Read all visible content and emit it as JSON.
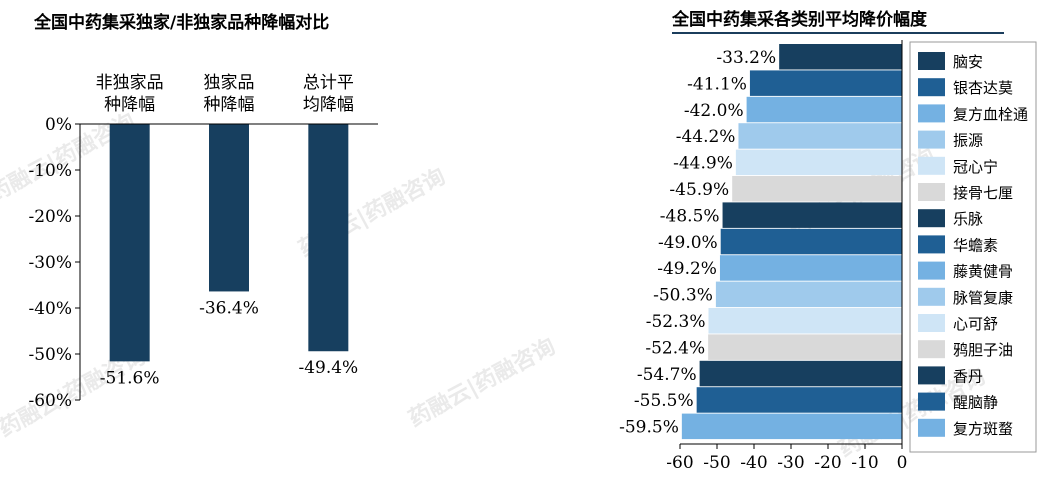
{
  "colors": {
    "navy": "#173f5f",
    "blue": "#1f5f94",
    "mid_blue": "#74b1e2",
    "light_blue": "#9fcaec",
    "pale_blue": "#cfe5f6",
    "grey": "#d9d9d9"
  },
  "watermark": "药融云|药融咨询",
  "chart_data": [
    {
      "type": "bar",
      "title": "全国中药集采独家/非独家品种降幅对比",
      "categories": [
        "非独家品种降幅",
        "独家品种降幅",
        "总计平均降幅"
      ],
      "category_lines": [
        [
          "非独家品",
          "种降幅"
        ],
        [
          "独家品",
          "种降幅"
        ],
        [
          "总计平",
          "均降幅"
        ]
      ],
      "values": [
        -51.6,
        -36.4,
        -49.4
      ],
      "value_labels": [
        "-51.6%",
        "-36.4%",
        "-49.4%"
      ],
      "ylim": [
        -60,
        0
      ],
      "yticks": [
        "0%",
        "-10%",
        "-20%",
        "-30%",
        "-40%",
        "-50%",
        "-60%"
      ],
      "bar_color": "#173f5f",
      "grid": false
    },
    {
      "type": "bar",
      "orientation": "horizontal",
      "title": "全国中药集采各类别平均降价幅度",
      "categories": [
        "脑安",
        "银杏达莫",
        "复方血栓通",
        "振源",
        "冠心宁",
        "接骨七厘",
        "乐脉",
        "华蟾素",
        "藤黄健骨",
        "脉管复康",
        "心可舒",
        "鸦胆子油",
        "香丹",
        "醒脑静",
        "复方斑蝥"
      ],
      "values": [
        -33.2,
        -41.1,
        -42.0,
        -44.2,
        -44.9,
        -45.9,
        -48.5,
        -49.0,
        -49.2,
        -50.3,
        -52.3,
        -52.4,
        -54.7,
        -55.5,
        -59.5
      ],
      "value_labels": [
        "-33.2%",
        "-41.1%",
        "-42.0%",
        "-44.2%",
        "-44.9%",
        "-45.9%",
        "-48.5%",
        "-49.0%",
        "-49.2%",
        "-50.3%",
        "-52.3%",
        "-52.4%",
        "-54.7%",
        "-55.5%",
        "-59.5%"
      ],
      "colors": [
        "#173f5f",
        "#1f5f94",
        "#74b1e2",
        "#9fcaec",
        "#cfe5f6",
        "#d9d9d9",
        "#173f5f",
        "#1f5f94",
        "#74b1e2",
        "#9fcaec",
        "#cfe5f6",
        "#d9d9d9",
        "#173f5f",
        "#1f5f94",
        "#74b1e2"
      ],
      "xlim": [
        -60,
        0
      ],
      "xticks": [
        "-60",
        "-50",
        "-40",
        "-30",
        "-20",
        "-10",
        "0"
      ],
      "legend_position": "right",
      "grid": false
    }
  ]
}
